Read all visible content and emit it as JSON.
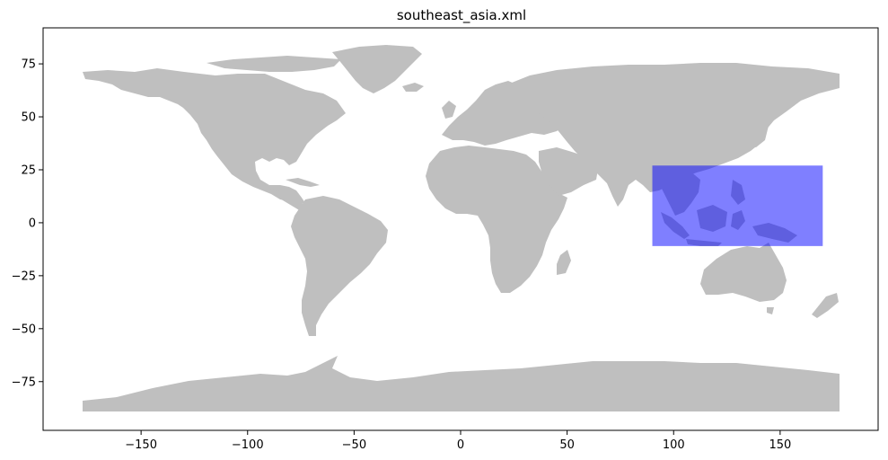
{
  "chart_data": {
    "type": "map",
    "title": "southeast_asia.xml",
    "xlabel": "",
    "ylabel": "",
    "xlim": [
      -196,
      196
    ],
    "ylim": [
      -98,
      92
    ],
    "xticks": [
      -150,
      -100,
      -50,
      0,
      50,
      100,
      150
    ],
    "yticks": [
      75,
      50,
      25,
      0,
      -25,
      -50,
      -75
    ],
    "grid": false,
    "land_color": "#bfbfbf",
    "highlight": {
      "lon_min": 90,
      "lon_max": 170,
      "lat_min": -11,
      "lat_max": 27,
      "color": "#0000ff",
      "alpha": 0.5
    }
  }
}
